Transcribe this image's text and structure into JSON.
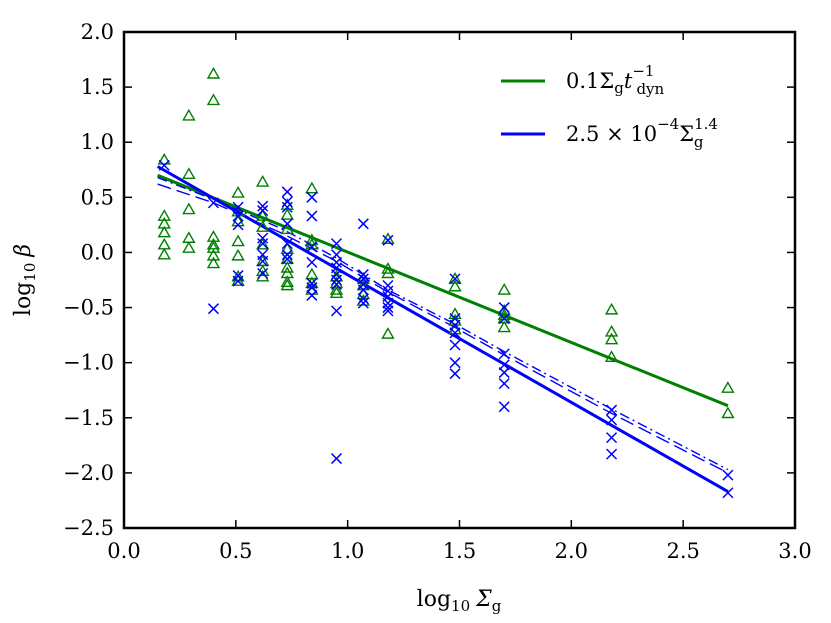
{
  "chart_data": {
    "type": "scatter",
    "title": "",
    "xlabel": {
      "base": "log",
      "sub": "10",
      "symbol": "Σ",
      "symbol_sub": "g"
    },
    "ylabel": {
      "base": "log",
      "sub": "10",
      "symbol": "β"
    },
    "xlim": [
      0.0,
      3.0
    ],
    "ylim": [
      -2.5,
      2.0
    ],
    "xticks": [
      0.0,
      0.5,
      1.0,
      1.5,
      2.0,
      2.5,
      3.0
    ],
    "xtick_labels": [
      "0.0",
      "0.5",
      "1.0",
      "1.5",
      "2.0",
      "2.5",
      "3.0"
    ],
    "yticks": [
      2.0,
      1.5,
      1.0,
      0.5,
      0.0,
      -0.5,
      -1.0,
      -1.5,
      -2.0,
      -2.5
    ],
    "ytick_labels": [
      "2.0",
      "1.5",
      "1.0",
      "0.5",
      "0.0",
      "−0.5",
      "−1.0",
      "−1.5",
      "−2.0",
      "−2.5"
    ],
    "grid": false,
    "legend_position": "top-right",
    "legend": [
      {
        "color": "#008000",
        "parts": [
          "0.1Σ",
          "g",
          "t",
          "−1",
          "dyn"
        ]
      },
      {
        "color": "#0000ff",
        "parts": [
          "2.5 × 10",
          "−4",
          "Σ",
          "1.4",
          "g"
        ]
      }
    ],
    "series": [
      {
        "name": "green-triangles",
        "marker": "triangle",
        "color": "#008000",
        "points": [
          [
            0.18,
            0.84
          ],
          [
            0.18,
            0.33
          ],
          [
            0.18,
            0.26
          ],
          [
            0.18,
            0.18
          ],
          [
            0.18,
            0.07
          ],
          [
            0.18,
            -0.02
          ],
          [
            0.29,
            1.24
          ],
          [
            0.29,
            0.71
          ],
          [
            0.29,
            0.39
          ],
          [
            0.29,
            0.13
          ],
          [
            0.29,
            0.04
          ],
          [
            0.4,
            1.62
          ],
          [
            0.4,
            1.38
          ],
          [
            0.4,
            0.14
          ],
          [
            0.4,
            0.07
          ],
          [
            0.4,
            0.04
          ],
          [
            0.4,
            -0.03
          ],
          [
            0.4,
            -0.1
          ],
          [
            0.51,
            0.54
          ],
          [
            0.51,
            0.37
          ],
          [
            0.51,
            0.28
          ],
          [
            0.51,
            0.1
          ],
          [
            0.51,
            -0.03
          ],
          [
            0.51,
            -0.22
          ],
          [
            0.51,
            -0.26
          ],
          [
            0.62,
            0.64
          ],
          [
            0.62,
            0.33
          ],
          [
            0.62,
            0.23
          ],
          [
            0.62,
            0.07
          ],
          [
            0.62,
            -0.08
          ],
          [
            0.62,
            -0.17
          ],
          [
            0.62,
            -0.22
          ],
          [
            0.73,
            0.43
          ],
          [
            0.73,
            0.34
          ],
          [
            0.73,
            0.21
          ],
          [
            0.73,
            0.03
          ],
          [
            0.73,
            -0.06
          ],
          [
            0.73,
            -0.14
          ],
          [
            0.73,
            -0.19
          ],
          [
            0.73,
            -0.27
          ],
          [
            0.73,
            -0.3
          ],
          [
            0.84,
            0.58
          ],
          [
            0.84,
            0.11
          ],
          [
            0.84,
            0.07
          ],
          [
            0.84,
            -0.2
          ],
          [
            0.84,
            -0.28
          ],
          [
            0.84,
            -0.34
          ],
          [
            0.95,
            -0.22
          ],
          [
            0.95,
            -0.28
          ],
          [
            0.95,
            -0.34
          ],
          [
            0.95,
            -0.37
          ],
          [
            1.07,
            -0.24
          ],
          [
            1.07,
            -0.3
          ],
          [
            1.07,
            -0.38
          ],
          [
            1.07,
            -0.44
          ],
          [
            1.18,
            0.12
          ],
          [
            1.18,
            -0.15
          ],
          [
            1.18,
            -0.19
          ],
          [
            1.18,
            -0.74
          ],
          [
            1.48,
            -0.24
          ],
          [
            1.48,
            -0.31
          ],
          [
            1.48,
            -0.56
          ],
          [
            1.48,
            -0.62
          ],
          [
            1.48,
            -0.7
          ],
          [
            1.7,
            -0.34
          ],
          [
            1.7,
            -0.53
          ],
          [
            1.7,
            -0.57
          ],
          [
            1.7,
            -0.6
          ],
          [
            1.7,
            -0.68
          ],
          [
            2.18,
            -0.52
          ],
          [
            2.18,
            -0.72
          ],
          [
            2.18,
            -0.79
          ],
          [
            2.18,
            -0.95
          ],
          [
            2.7,
            -1.23
          ],
          [
            2.7,
            -1.46
          ]
        ]
      },
      {
        "name": "blue-crosses",
        "marker": "x",
        "color": "#0000ff",
        "points": [
          [
            0.18,
            0.79
          ],
          [
            0.4,
            0.45
          ],
          [
            0.4,
            -0.51
          ],
          [
            0.51,
            0.41
          ],
          [
            0.51,
            0.33
          ],
          [
            0.51,
            0.25
          ],
          [
            0.51,
            -0.21
          ],
          [
            0.51,
            -0.26
          ],
          [
            0.62,
            0.42
          ],
          [
            0.62,
            0.38
          ],
          [
            0.62,
            0.13
          ],
          [
            0.62,
            0.08
          ],
          [
            0.62,
            -0.02
          ],
          [
            0.62,
            -0.08
          ],
          [
            0.62,
            -0.19
          ],
          [
            0.73,
            0.55
          ],
          [
            0.73,
            0.46
          ],
          [
            0.73,
            0.41
          ],
          [
            0.73,
            0.26
          ],
          [
            0.73,
            0.08
          ],
          [
            0.73,
            -0.02
          ],
          [
            0.73,
            -0.06
          ],
          [
            0.84,
            0.5
          ],
          [
            0.84,
            0.33
          ],
          [
            0.84,
            0.05
          ],
          [
            0.84,
            -0.09
          ],
          [
            0.84,
            -0.28
          ],
          [
            0.84,
            -0.32
          ],
          [
            0.84,
            -0.39
          ],
          [
            0.95,
            0.08
          ],
          [
            0.95,
            -0.02
          ],
          [
            0.95,
            -0.09
          ],
          [
            0.95,
            -0.14
          ],
          [
            0.95,
            -0.2
          ],
          [
            0.95,
            -0.25
          ],
          [
            0.95,
            -0.29
          ],
          [
            0.95,
            -0.53
          ],
          [
            0.95,
            -1.87
          ],
          [
            1.07,
            0.26
          ],
          [
            1.07,
            -0.2
          ],
          [
            1.07,
            -0.24
          ],
          [
            1.07,
            -0.29
          ],
          [
            1.07,
            -0.34
          ],
          [
            1.07,
            -0.42
          ],
          [
            1.07,
            -0.46
          ],
          [
            1.18,
            0.11
          ],
          [
            1.18,
            -0.3
          ],
          [
            1.18,
            -0.35
          ],
          [
            1.18,
            -0.4
          ],
          [
            1.18,
            -0.46
          ],
          [
            1.18,
            -0.5
          ],
          [
            1.18,
            -0.53
          ],
          [
            1.48,
            -0.24
          ],
          [
            1.48,
            -0.6
          ],
          [
            1.48,
            -0.66
          ],
          [
            1.48,
            -0.73
          ],
          [
            1.48,
            -0.84
          ],
          [
            1.48,
            -1.0
          ],
          [
            1.48,
            -1.1
          ],
          [
            1.7,
            -0.5
          ],
          [
            1.7,
            -0.6
          ],
          [
            1.7,
            -0.92
          ],
          [
            1.7,
            -1.02
          ],
          [
            1.7,
            -1.09
          ],
          [
            1.7,
            -1.19
          ],
          [
            1.7,
            -1.4
          ],
          [
            2.18,
            -1.43
          ],
          [
            2.18,
            -1.52
          ],
          [
            2.18,
            -1.68
          ],
          [
            2.18,
            -1.83
          ],
          [
            2.7,
            -2.02
          ],
          [
            2.7,
            -2.18
          ]
        ]
      }
    ],
    "fit_lines": [
      {
        "name": "green-fit-line",
        "style": "solid",
        "color": "#008000",
        "x": [
          0.15,
          2.7
        ],
        "y": [
          0.7,
          -1.39
        ]
      },
      {
        "name": "blue-fit-line",
        "style": "solid",
        "color": "#0000ff",
        "x": [
          0.15,
          2.7
        ],
        "y": [
          0.78,
          -2.17
        ]
      },
      {
        "name": "blue-dashed-line",
        "style": "dashed",
        "color": "#0000ff",
        "x": [
          0.15,
          0.4,
          0.7,
          0.95,
          1.18,
          1.48,
          1.7,
          2.18,
          2.7
        ],
        "y": [
          0.62,
          0.45,
          0.18,
          -0.08,
          -0.36,
          -0.68,
          -0.93,
          -1.46,
          -2.0
        ]
      },
      {
        "name": "blue-dashdot-line",
        "style": "dashdot",
        "color": "#0000ff",
        "x": [
          0.15,
          0.4,
          0.7,
          0.95,
          1.18,
          1.48,
          1.7,
          2.18,
          2.7
        ],
        "y": [
          0.68,
          0.48,
          0.22,
          -0.05,
          -0.34,
          -0.65,
          -0.9,
          -1.42,
          -1.97
        ]
      }
    ]
  }
}
